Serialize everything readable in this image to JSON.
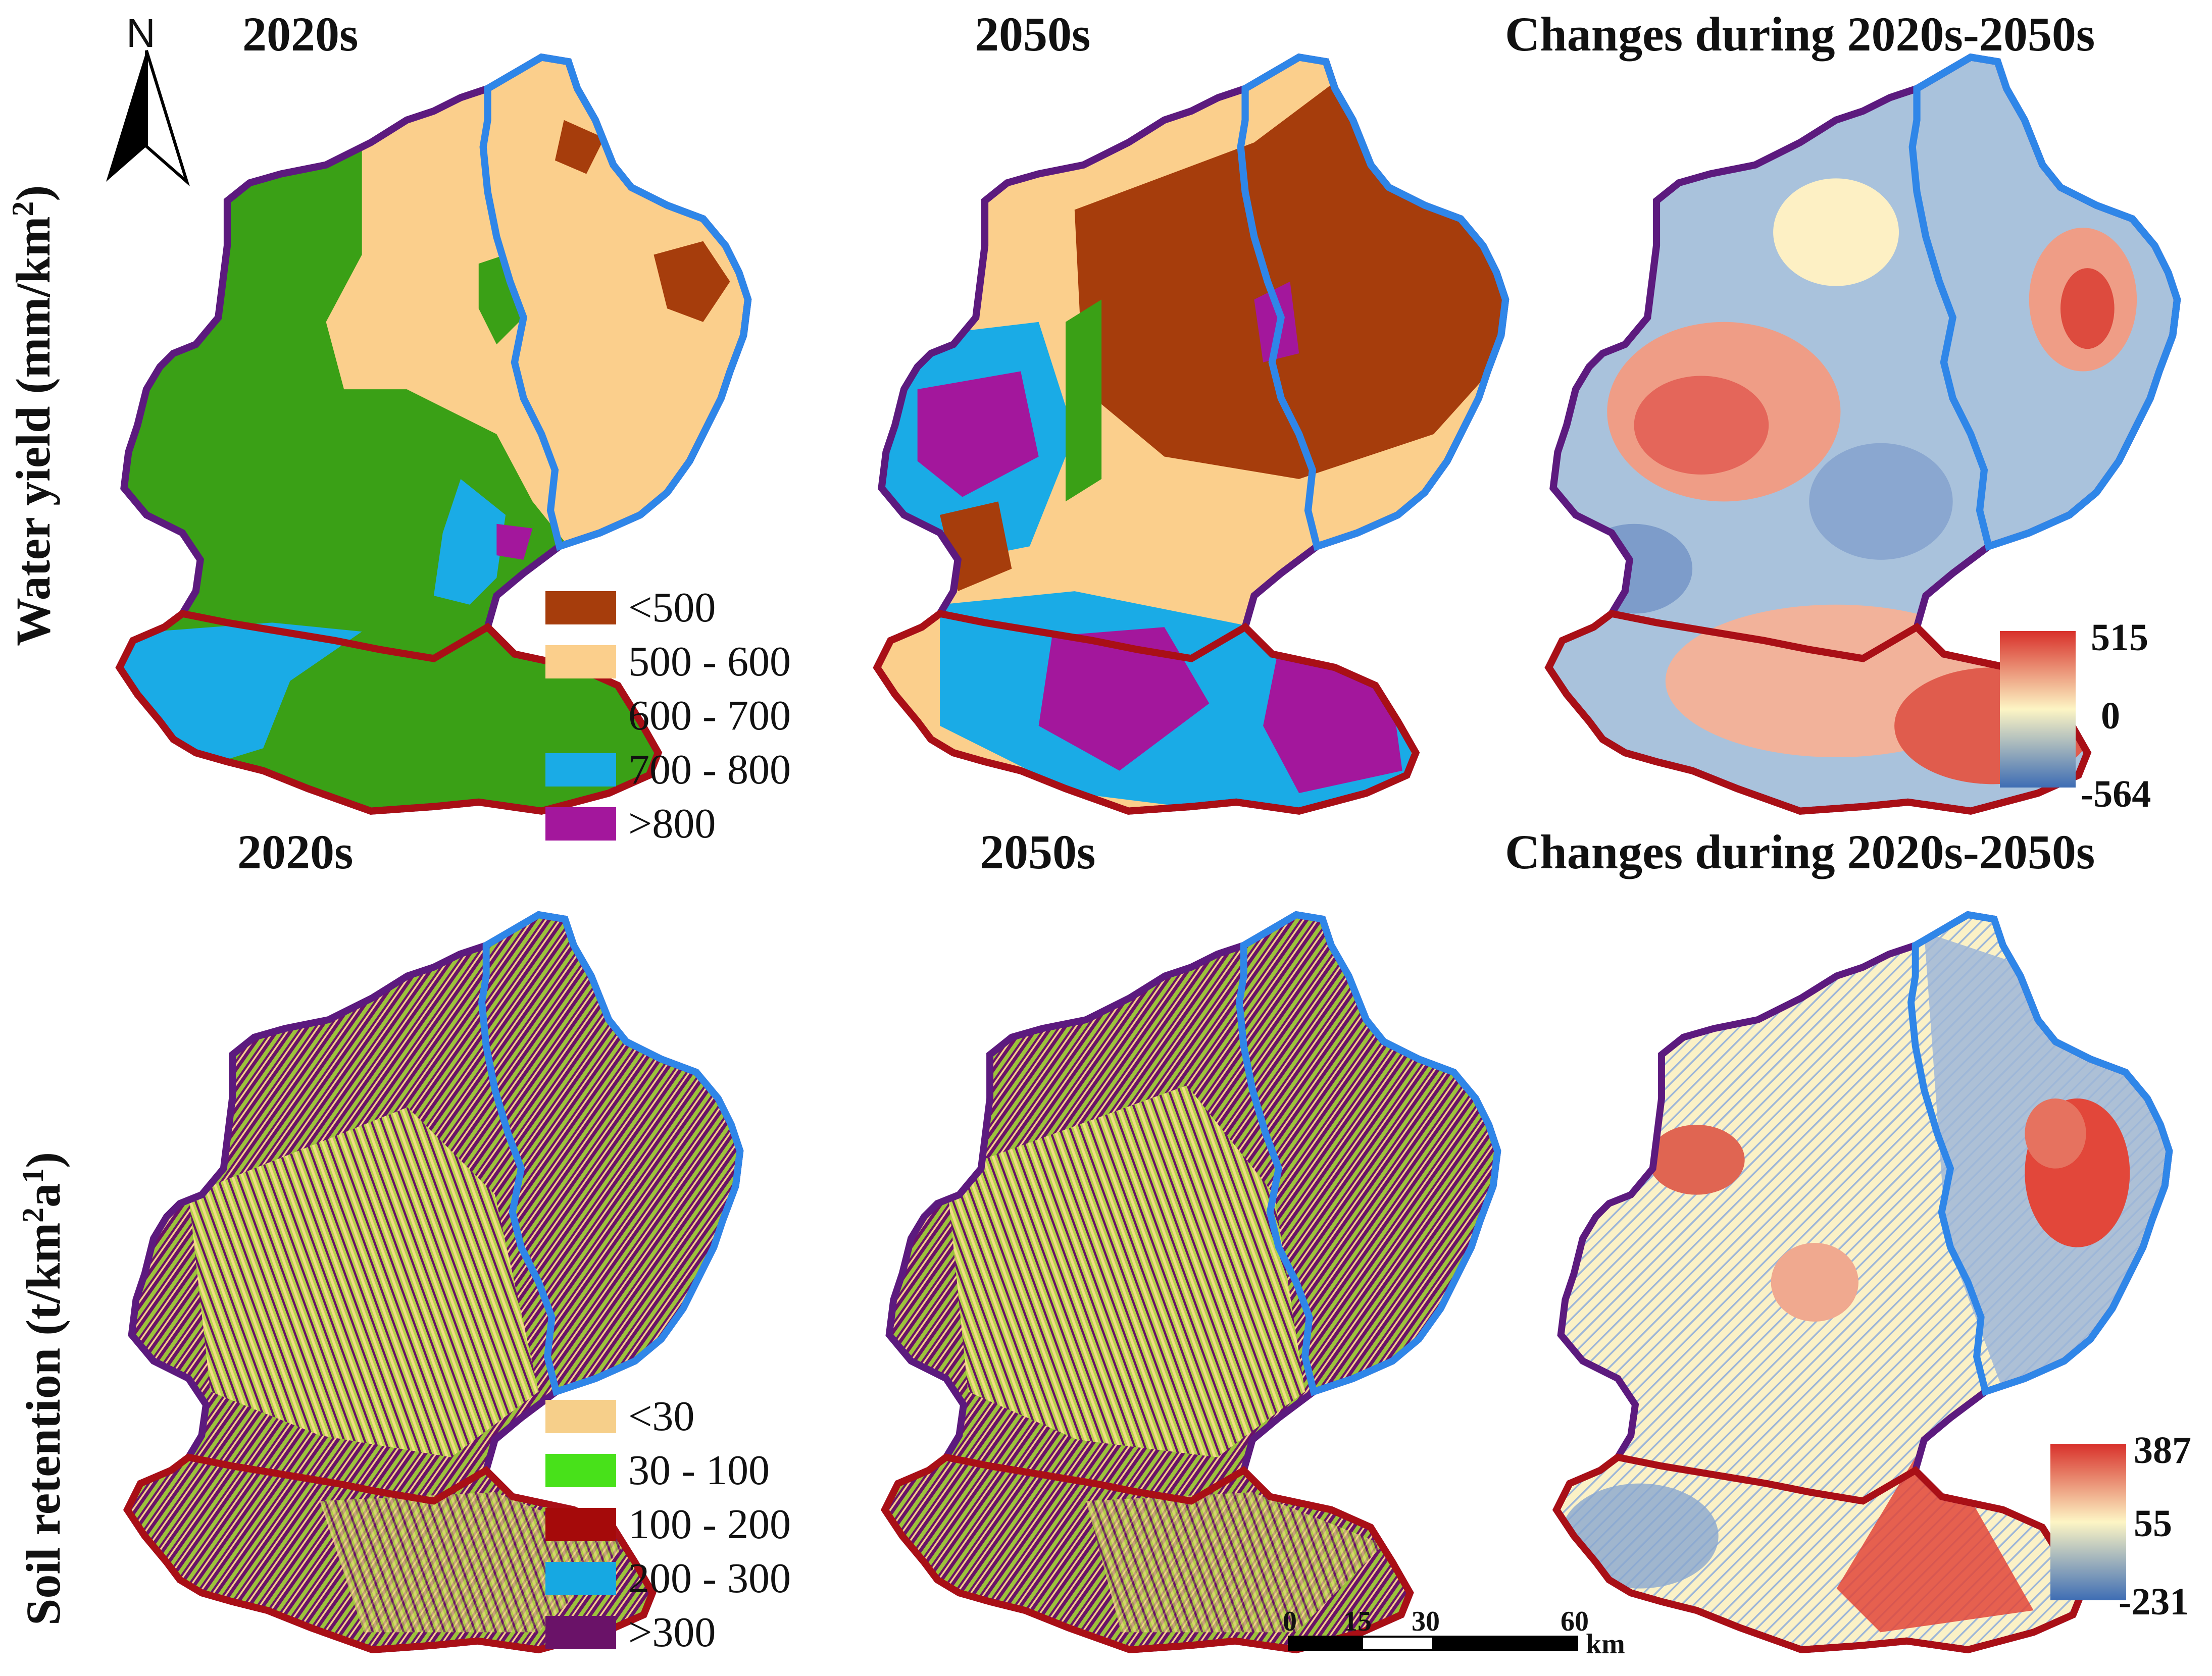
{
  "north": {
    "label": "N"
  },
  "rows": [
    {
      "ylabel_main": "Water yield (mm/km",
      "ylabel_sup": "2",
      "ylabel_end": ")",
      "titles": [
        "2020s",
        "2050s",
        "Changes during 2020s-2050s"
      ],
      "legend": [
        {
          "label": "<500",
          "color": "#a63d0c"
        },
        {
          "label": "500 - 600",
          "color": "#fbcf8c"
        },
        {
          "label": "600 - 700",
          "color": "#3aa016"
        },
        {
          "label": "700 - 800",
          "color": "#1aabe6"
        },
        {
          "label": ">800",
          "color": "#a3179c"
        }
      ],
      "colorbar": {
        "max": "515",
        "mid": "0",
        "min": "-564"
      }
    },
    {
      "ylabel_main": "Soil retention (t/km",
      "ylabel_sup": "2",
      "ylabel_mid": "a",
      "ylabel_sup2": "1",
      "ylabel_end": ")",
      "titles": [
        "2020s",
        "2050s",
        "Changes during 2020s-2050s"
      ],
      "legend": [
        {
          "label": "<30",
          "color": "#f6cf8a"
        },
        {
          "label": "30 - 100",
          "color": "#48e11a"
        },
        {
          "label": "100 - 200",
          "color": "#a50a0a"
        },
        {
          "label": "200 - 300",
          "color": "#16a8e2"
        },
        {
          "label": ">300",
          "color": "#6a1268"
        }
      ],
      "colorbar": {
        "max": "387",
        "mid": "55",
        "min": "-231"
      }
    }
  ],
  "scale_bar": {
    "ticks": [
      "0",
      "15",
      "30",
      "60"
    ],
    "unit": "km"
  },
  "colors": {
    "outline_red": "#a90f16",
    "outline_purple": "#5c1a7e",
    "outline_blue": "#2f86e8",
    "cbar_high": "#d8302a",
    "cbar_mid": "#fdf5c4",
    "cbar_low": "#3e6db4"
  }
}
